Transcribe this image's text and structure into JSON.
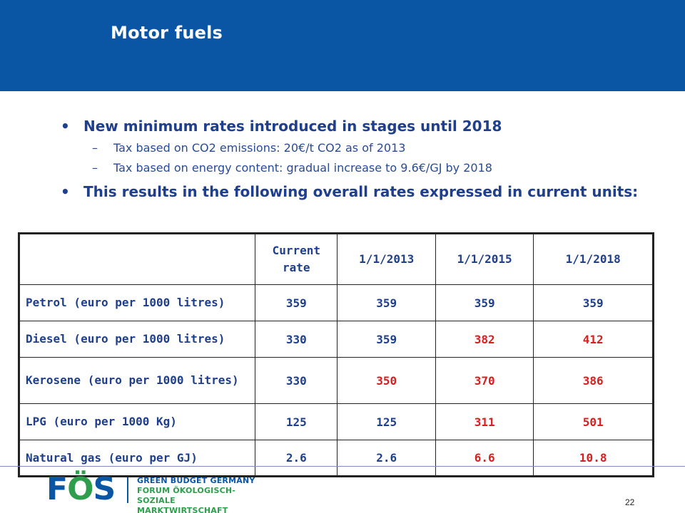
{
  "title": "Motor fuels",
  "bullets": [
    {
      "text": "New minimum rates introduced in stages until 2018",
      "subs": [
        "Tax based on CO2 emissions: 20€/t CO2 as of 2013",
        "Tax based on energy content: gradual increase to 9.6€/GJ by 2018"
      ]
    },
    {
      "text": "This results in the following overall rates expressed in current units:"
    }
  ],
  "table": {
    "headers": [
      "",
      "Current rate",
      "1/1/2013",
      "1/1/2015",
      "1/1/2018"
    ],
    "rows": [
      {
        "label": "Petrol (euro per 1000 litres)",
        "values": [
          "359",
          "359",
          "359",
          "359"
        ],
        "red": [
          false,
          false,
          false,
          false
        ]
      },
      {
        "label": "Diesel (euro per 1000 litres)",
        "values": [
          "330",
          "359",
          "382",
          "412"
        ],
        "red": [
          false,
          false,
          true,
          true
        ]
      },
      {
        "label": "Kerosene (euro per 1000 litres)",
        "values": [
          "330",
          "350",
          "370",
          "386"
        ],
        "red": [
          false,
          true,
          true,
          true
        ]
      },
      {
        "label": "LPG (euro per 1000 Kg)",
        "values": [
          "125",
          "125",
          "311",
          "501"
        ],
        "red": [
          false,
          false,
          true,
          true
        ]
      },
      {
        "label": "Natural gas (euro per GJ)",
        "values": [
          "2.6",
          "2.6",
          "6.6",
          "10.8"
        ],
        "red": [
          false,
          false,
          true,
          true
        ]
      }
    ]
  },
  "colors": {
    "header_band": "#0a55a4",
    "text_blue": "#1f3f8c",
    "highlight_red": "#d42020",
    "logo_green": "#2e9e4e"
  },
  "footer": {
    "logo_letters_left": "F",
    "logo_letter_o": "Ö",
    "logo_letter_s": "S",
    "logo_line1": "GREEN BUDGET GERMANY",
    "logo_line2": "FORUM ÖKOLOGISCH-SOZIALE",
    "logo_line3": "MARKTWIRTSCHAFT",
    "page_number": "22"
  }
}
